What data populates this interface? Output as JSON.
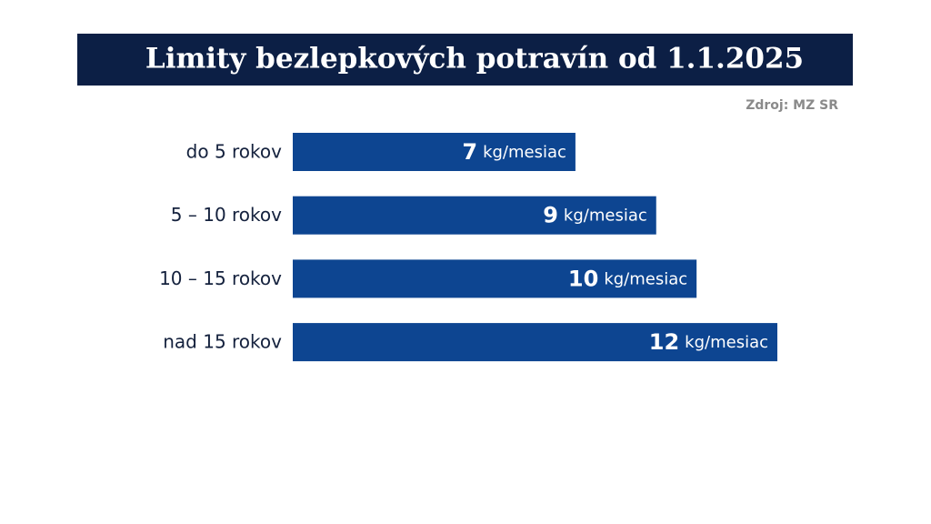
{
  "chart_data": {
    "type": "bar",
    "orientation": "horizontal",
    "title": "Limity bezlepkových potravín od 1.1.2025",
    "source": "Zdroj: MZ SR",
    "categories": [
      "do 5 rokov",
      "5 – 10 rokov",
      "10 – 15 rokov",
      "nad 15 rokov"
    ],
    "values": [
      7,
      9,
      10,
      12
    ],
    "unit": "kg/mesiac",
    "color": "#0d4591"
  }
}
